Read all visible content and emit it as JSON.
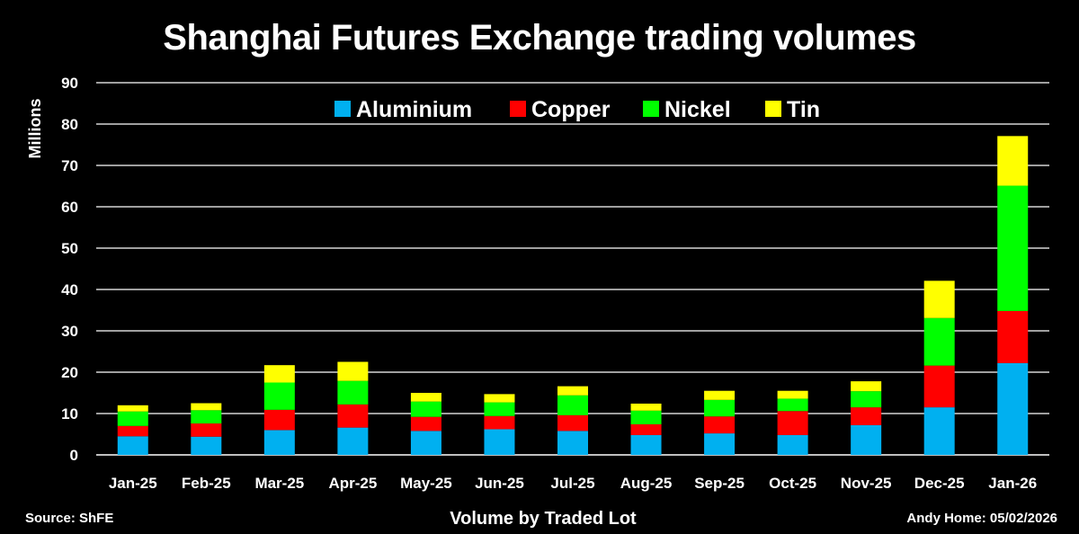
{
  "chart_data": {
    "type": "bar",
    "stacked": true,
    "title": "Shanghai Futures Exchange trading volumes",
    "xlabel": "Volume by Traded Lot",
    "ylabel": "Millions",
    "ylim": [
      0,
      90
    ],
    "yticks": [
      0,
      10,
      20,
      30,
      40,
      50,
      60,
      70,
      80,
      90
    ],
    "grid": true,
    "legend_position": "top",
    "categories": [
      "Jan-25",
      "Feb-25",
      "Mar-25",
      "Apr-25",
      "May-25",
      "Jun-25",
      "Jul-25",
      "Aug-25",
      "Sep-25",
      "Oct-25",
      "Nov-25",
      "Dec-25",
      "Jan-26"
    ],
    "series": [
      {
        "name": "Aluminium",
        "color": "#00B0F0",
        "values": [
          4.5,
          4.4,
          6.0,
          6.6,
          5.8,
          6.2,
          5.8,
          4.8,
          5.2,
          4.8,
          7.2,
          11.5,
          22.2
        ]
      },
      {
        "name": "Copper",
        "color": "#FF0000",
        "values": [
          2.5,
          3.2,
          4.9,
          5.6,
          3.4,
          3.2,
          3.8,
          2.6,
          4.1,
          5.8,
          4.3,
          10.1,
          12.6
        ]
      },
      {
        "name": "Nickel",
        "color": "#00FF00",
        "values": [
          3.5,
          3.2,
          6.6,
          5.7,
          3.7,
          3.3,
          4.8,
          3.3,
          4.0,
          3.0,
          3.9,
          11.5,
          30.3
        ]
      },
      {
        "name": "Tin",
        "color": "#FFFF00",
        "values": [
          1.5,
          1.7,
          4.2,
          4.6,
          2.1,
          2.0,
          2.2,
          1.7,
          2.2,
          1.9,
          2.4,
          9.0,
          12.0
        ]
      }
    ]
  },
  "footer": {
    "source": "Source: ShFE",
    "credit": "Andy Home: 05/02/2026"
  }
}
